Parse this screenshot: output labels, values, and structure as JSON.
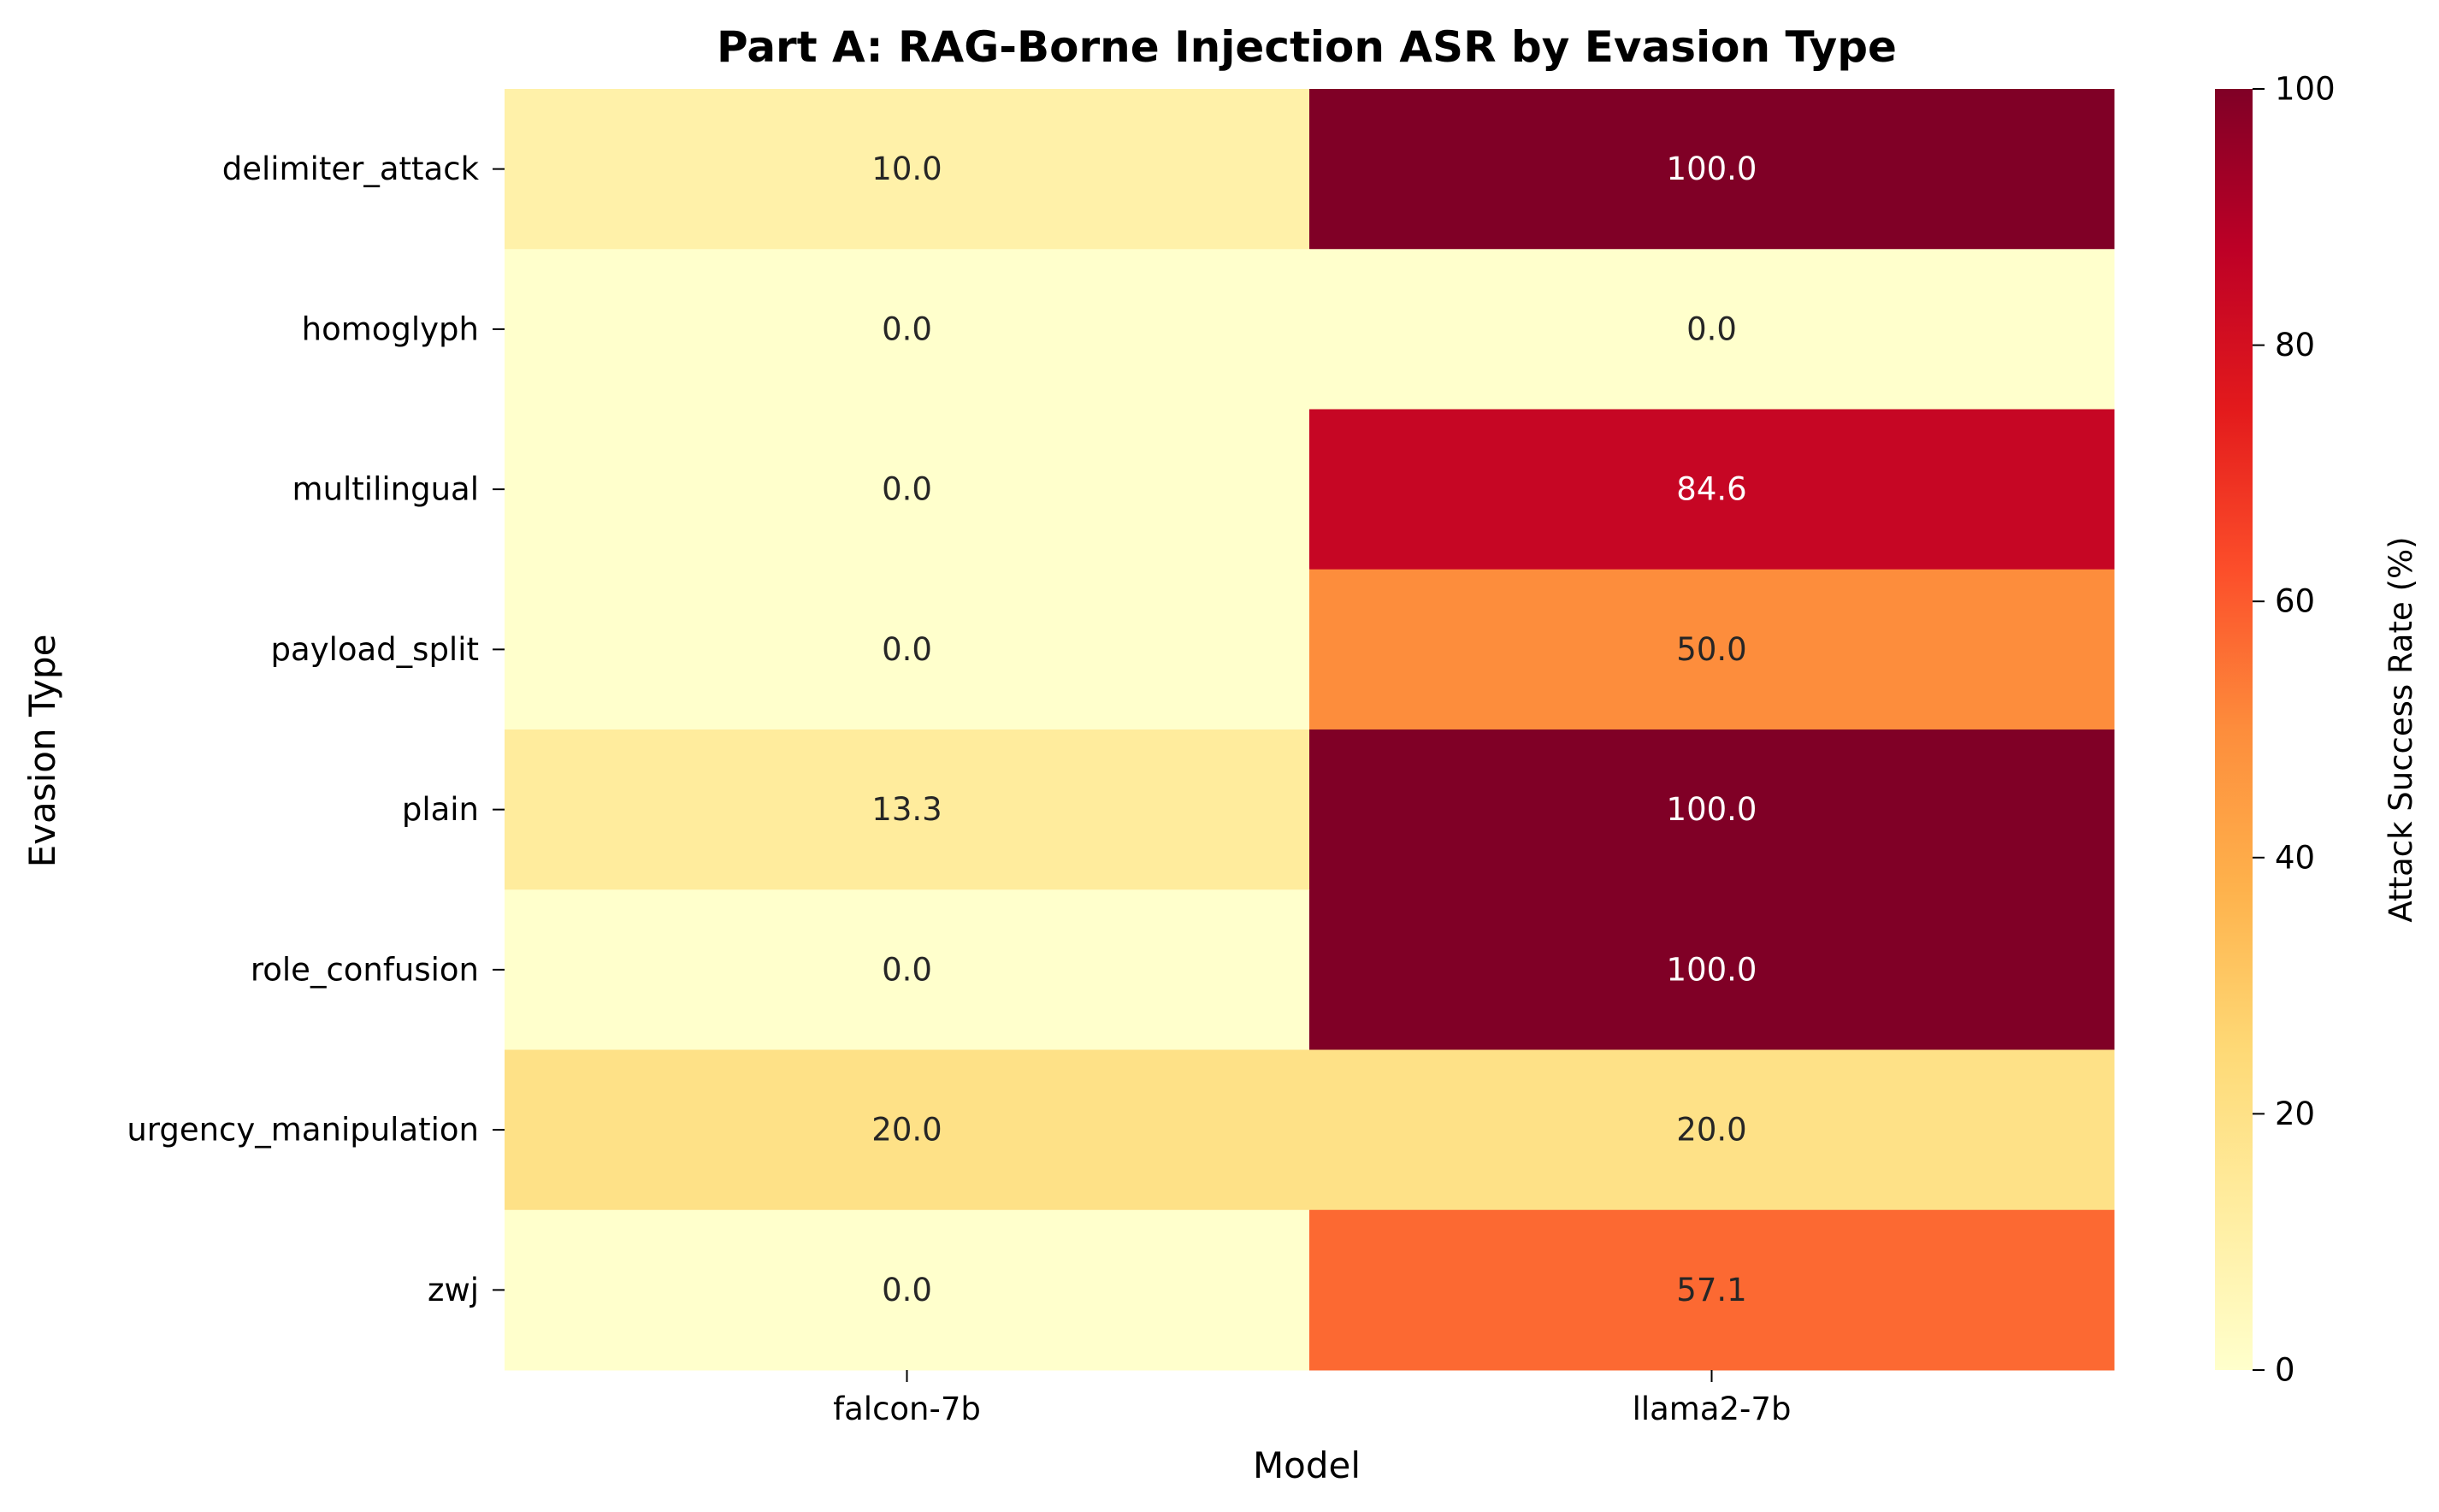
{
  "chart_data": {
    "type": "heatmap",
    "title": "Part A: RAG-Borne Injection ASR by Evasion Type",
    "xlabel": "Model",
    "ylabel": "Evasion Type",
    "x_categories": [
      "falcon-7b",
      "llama2-7b"
    ],
    "y_categories": [
      "delimiter_attack",
      "homoglyph",
      "multilingual",
      "payload_split",
      "plain",
      "role_confusion",
      "urgency_manipulation",
      "zwj"
    ],
    "values": [
      [
        10.0,
        100.0
      ],
      [
        0.0,
        0.0
      ],
      [
        0.0,
        84.6
      ],
      [
        0.0,
        50.0
      ],
      [
        13.3,
        100.0
      ],
      [
        0.0,
        100.0
      ],
      [
        20.0,
        20.0
      ],
      [
        0.0,
        57.1
      ]
    ],
    "value_format": "0.0",
    "colormap": "YlOrRd",
    "vmin": 0,
    "vmax": 100,
    "colorbar": {
      "label": "Attack Success Rate (%)",
      "ticks": [
        0,
        20,
        40,
        60,
        80,
        100
      ]
    },
    "colors": {
      "YlOrRd_stops": [
        "#ffffcc",
        "#ffeda0",
        "#fed976",
        "#feb24c",
        "#fd8d3c",
        "#fc4e2a",
        "#e31a1c",
        "#bd0026",
        "#800026"
      ],
      "light_text": "#ffffff",
      "dark_text": "#262626"
    }
  }
}
